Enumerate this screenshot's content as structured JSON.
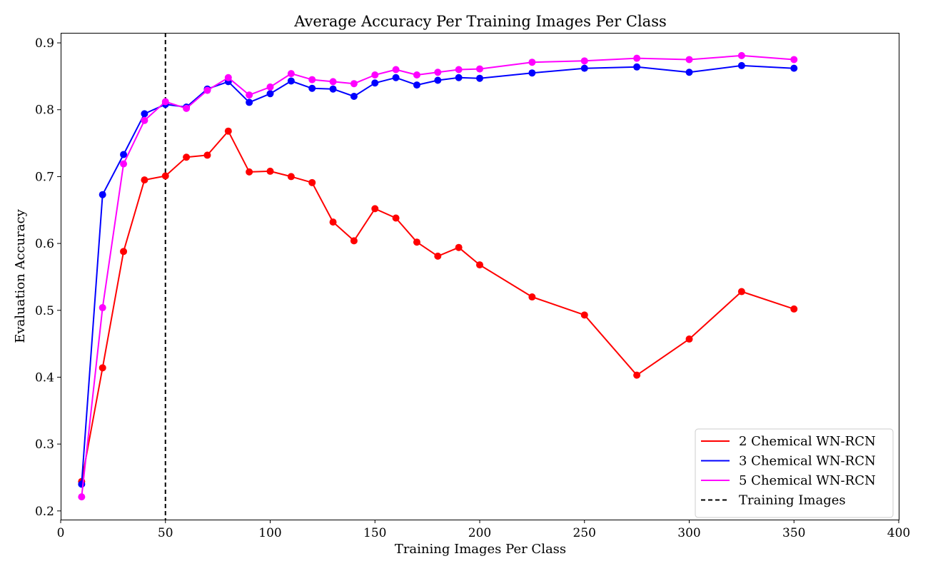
{
  "chart_data": {
    "type": "line",
    "title": "Average Accuracy Per Training Images Per Class",
    "xlabel": "Training Images Per Class",
    "ylabel": "Evaluation Accuracy",
    "xlim": [
      0,
      400
    ],
    "ylim": [
      0.187,
      0.915
    ],
    "xticks": [
      0,
      50,
      100,
      150,
      200,
      250,
      300,
      350,
      400
    ],
    "yticks": [
      0.2,
      0.3,
      0.4,
      0.5,
      0.6,
      0.7,
      0.8,
      0.9
    ],
    "grid": false,
    "legend_position": "bottom-right",
    "x": [
      10,
      20,
      30,
      40,
      50,
      60,
      70,
      80,
      90,
      100,
      110,
      120,
      130,
      140,
      150,
      160,
      170,
      180,
      190,
      200,
      225,
      250,
      275,
      300,
      325,
      350
    ],
    "series": [
      {
        "name": "2 Chemical WN-RCN",
        "color": "#ff0000",
        "values": [
          0.244,
          0.414,
          0.588,
          0.695,
          0.701,
          0.729,
          0.732,
          0.768,
          0.707,
          0.708,
          0.7,
          0.691,
          0.632,
          0.604,
          0.652,
          0.638,
          0.602,
          0.581,
          0.594,
          0.568,
          0.52,
          0.493,
          0.403,
          0.457,
          0.528,
          0.502
        ]
      },
      {
        "name": "3 Chemical WN-RCN",
        "color": "#0000ff",
        "values": [
          0.24,
          0.673,
          0.733,
          0.794,
          0.808,
          0.804,
          0.831,
          0.842,
          0.811,
          0.824,
          0.843,
          0.832,
          0.831,
          0.82,
          0.84,
          0.848,
          0.837,
          0.844,
          0.848,
          0.847,
          0.855,
          0.862,
          0.864,
          0.856,
          0.866,
          0.862
        ]
      },
      {
        "name": "5 Chemical WN-RCN",
        "color": "#ff00ff",
        "values": [
          0.221,
          0.504,
          0.719,
          0.784,
          0.812,
          0.802,
          0.829,
          0.848,
          0.822,
          0.834,
          0.854,
          0.845,
          0.842,
          0.839,
          0.852,
          0.86,
          0.852,
          0.856,
          0.86,
          0.861,
          0.871,
          0.873,
          0.877,
          0.875,
          0.881,
          0.875
        ]
      }
    ],
    "reference_line": {
      "name": "Training Images",
      "x": 50,
      "color": "#000000",
      "style": "dashed"
    }
  }
}
